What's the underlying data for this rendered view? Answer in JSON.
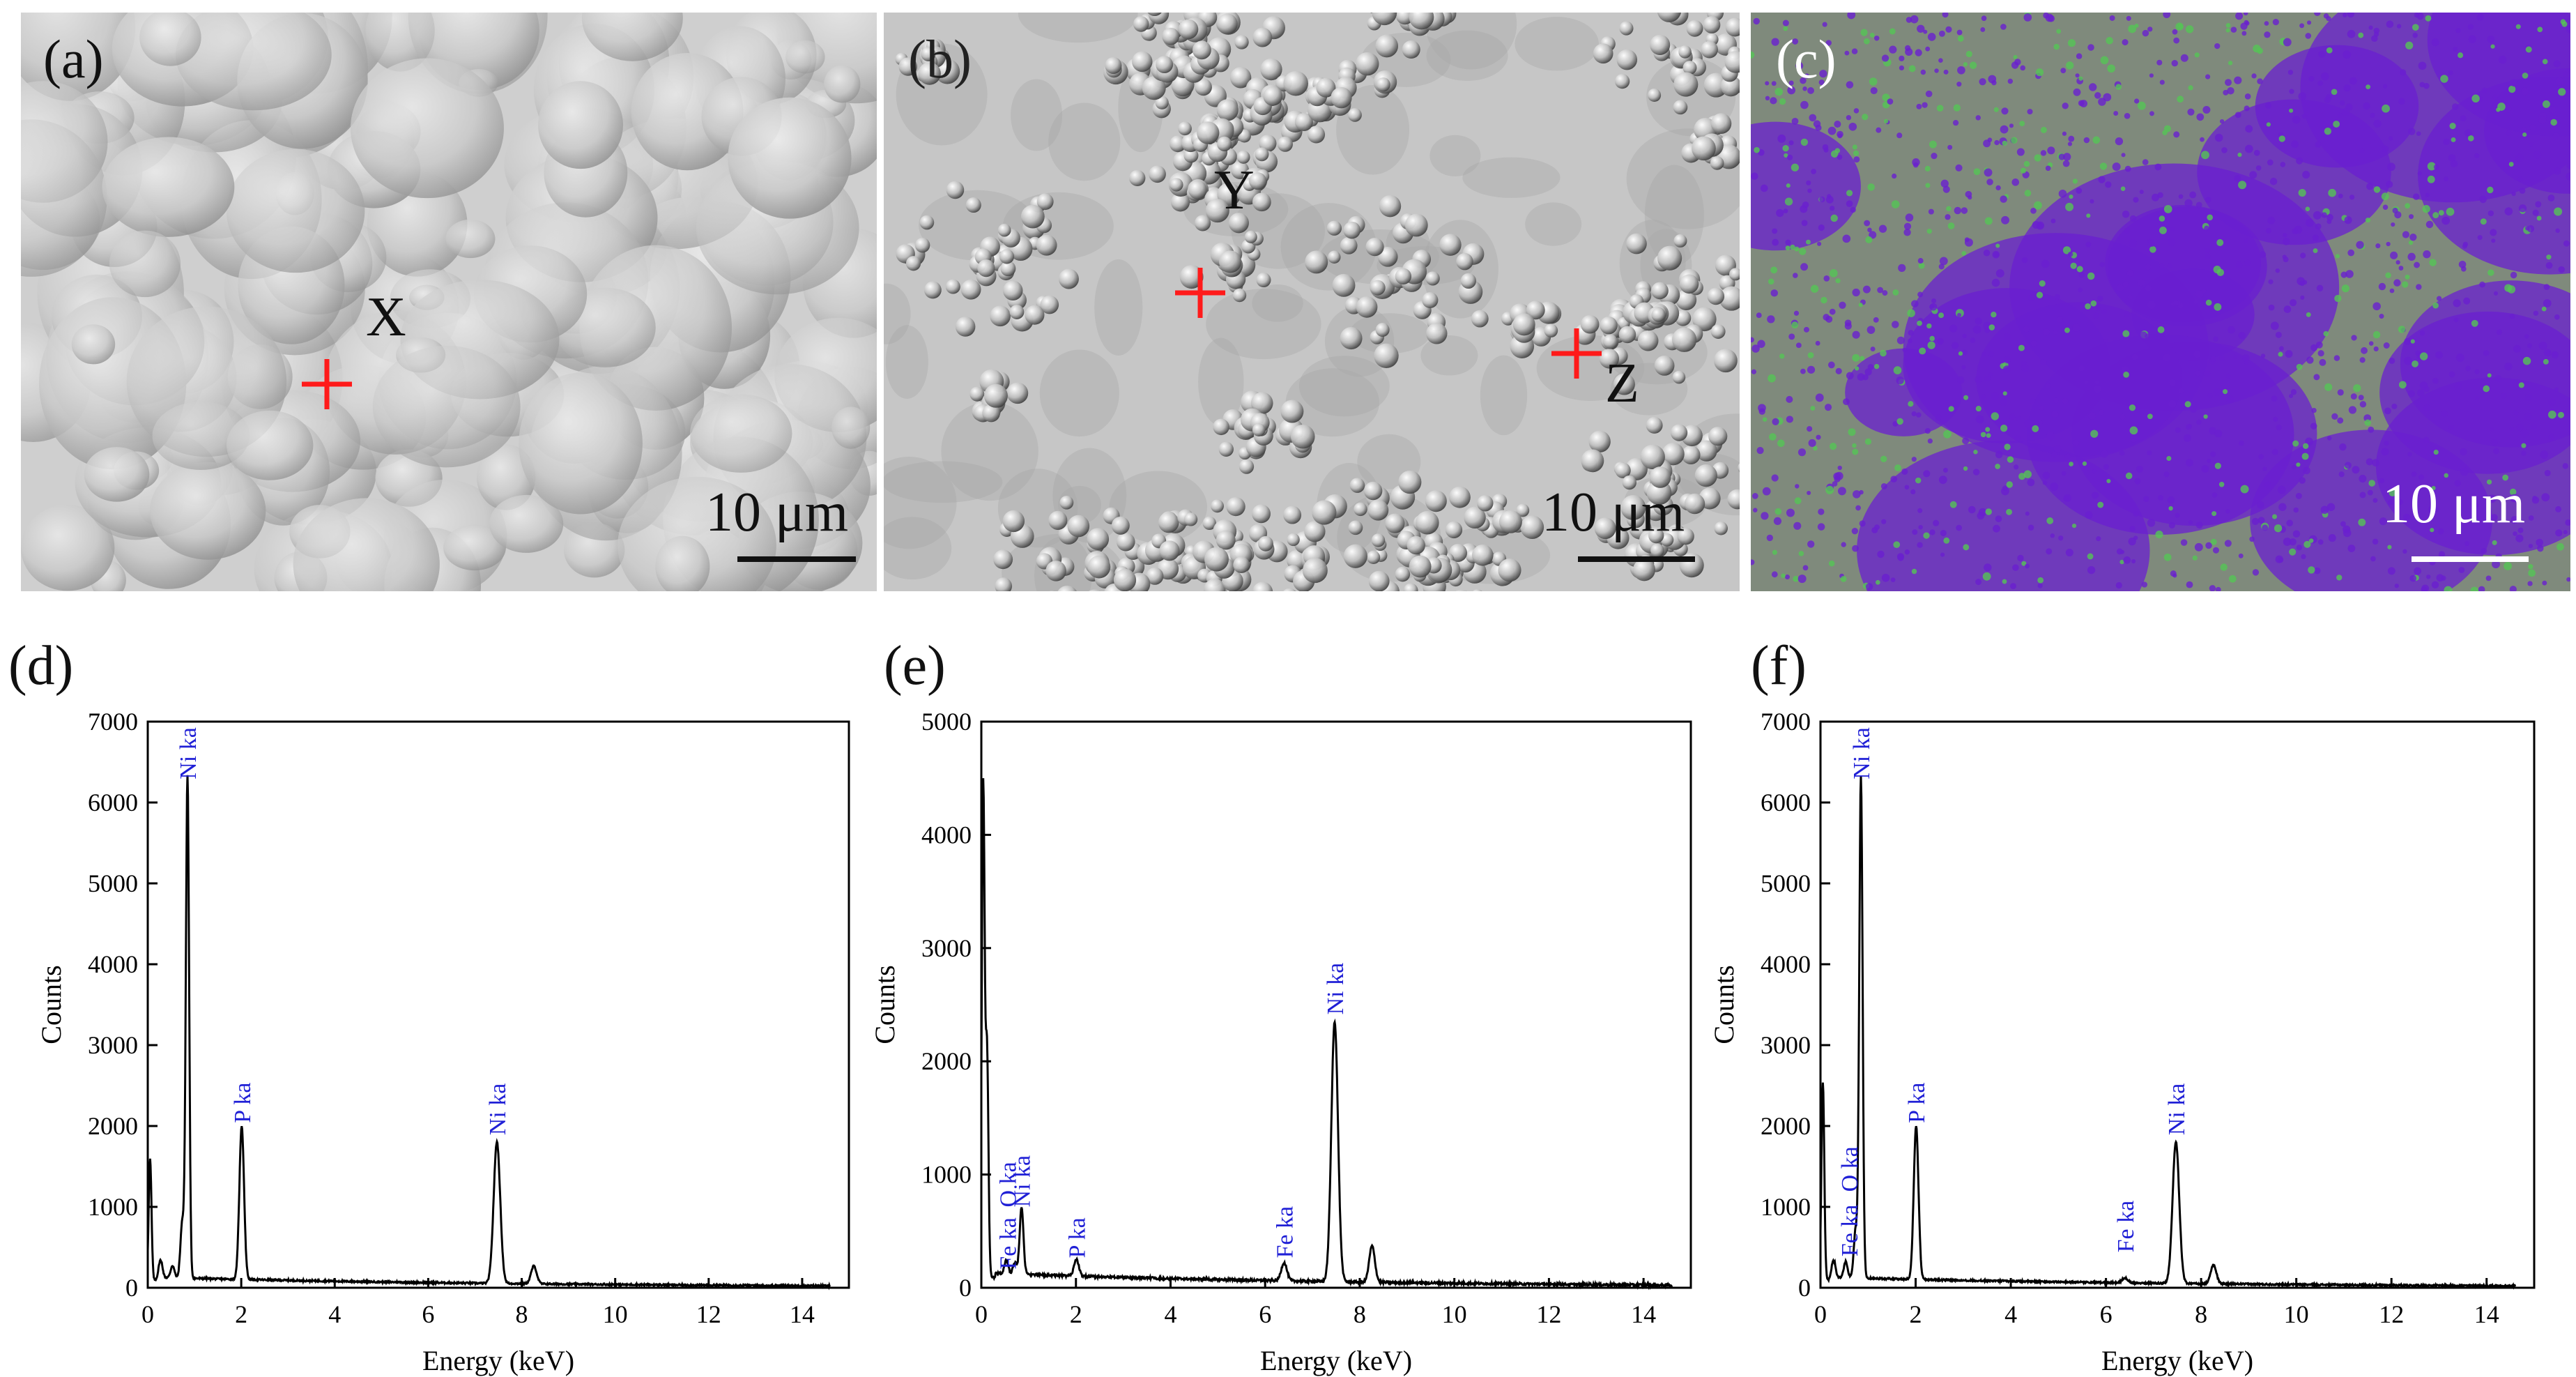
{
  "sem_panels": [
    {
      "letter": "(a)",
      "points": [
        "X"
      ],
      "scale": "10 μm",
      "style": "light"
    },
    {
      "letter": "(b)",
      "points": [
        "Y",
        "Z"
      ],
      "scale": "10 μm",
      "style": "grain"
    },
    {
      "letter": "(c)",
      "points": [],
      "scale": "10 μm",
      "style": "map"
    }
  ],
  "colors": {
    "marker": "#ff1a1a",
    "peak_label": "#1f1fd6",
    "map_purple": "#6a1fd0",
    "map_green": "#55c455",
    "spectrum_line": "#000000"
  },
  "chart_data": [
    {
      "panel": "(d)",
      "type": "line",
      "xlabel": "Energy (keV)",
      "ylabel": "Counts",
      "xlim": [
        0,
        15
      ],
      "ylim": [
        0,
        7000
      ],
      "xticks": [
        0,
        2,
        4,
        6,
        8,
        10,
        12,
        14
      ],
      "yticks": [
        0,
        1000,
        2000,
        3000,
        4000,
        5000,
        6000,
        7000
      ],
      "peaks": [
        {
          "energy": 0.05,
          "counts": 1500,
          "width": 0.03
        },
        {
          "energy": 0.27,
          "counts": 250,
          "width": 0.04
        },
        {
          "energy": 0.53,
          "counts": 150,
          "width": 0.04
        },
        {
          "energy": 0.74,
          "counts": 700,
          "width": 0.04
        },
        {
          "energy": 0.85,
          "counts": 6200,
          "width": 0.035
        },
        {
          "energy": 2.01,
          "counts": 1900,
          "width": 0.05
        },
        {
          "energy": 7.47,
          "counts": 1750,
          "width": 0.07
        },
        {
          "energy": 8.26,
          "counts": 220,
          "width": 0.06
        }
      ],
      "annotations": [
        {
          "text": "Ni ka",
          "energy": 0.85,
          "counts": 6200
        },
        {
          "text": "P ka",
          "energy": 2.01,
          "counts": 1950
        },
        {
          "text": "Ni ka",
          "energy": 7.47,
          "counts": 1800
        }
      ]
    },
    {
      "panel": "(e)",
      "type": "line",
      "xlabel": "Energy (keV)",
      "ylabel": "Counts",
      "xlim": [
        0,
        15
      ],
      "ylim": [
        0,
        5000
      ],
      "xticks": [
        0,
        2,
        4,
        6,
        8,
        10,
        12,
        14
      ],
      "yticks": [
        0,
        1000,
        2000,
        3000,
        4000,
        5000
      ],
      "peaks": [
        {
          "energy": 0.04,
          "counts": 4350,
          "width": 0.03
        },
        {
          "energy": 0.12,
          "counts": 2000,
          "width": 0.03
        },
        {
          "energy": 0.53,
          "counts": 120,
          "width": 0.04
        },
        {
          "energy": 0.71,
          "counts": 100,
          "width": 0.04
        },
        {
          "energy": 0.85,
          "counts": 600,
          "width": 0.04
        },
        {
          "energy": 2.01,
          "counts": 150,
          "width": 0.05
        },
        {
          "energy": 6.4,
          "counts": 160,
          "width": 0.06
        },
        {
          "energy": 7.47,
          "counts": 2300,
          "width": 0.07
        },
        {
          "energy": 8.26,
          "counts": 320,
          "width": 0.06
        }
      ],
      "annotations": [
        {
          "text": "Fe ka",
          "energy": 0.55,
          "counts": 100
        },
        {
          "text": "O ka",
          "energy": 0.55,
          "counts": 650
        },
        {
          "text": "Ni ka",
          "energy": 0.85,
          "counts": 650
        },
        {
          "text": "P ka",
          "energy": 2.01,
          "counts": 200
        },
        {
          "text": "Fe ka",
          "energy": 6.4,
          "counts": 200
        },
        {
          "text": "Ni ka",
          "energy": 7.47,
          "counts": 2350
        }
      ]
    },
    {
      "panel": "(f)",
      "type": "line",
      "xlabel": "Energy (keV)",
      "ylabel": "Counts",
      "xlim": [
        0,
        15
      ],
      "ylim": [
        0,
        7000
      ],
      "xticks": [
        0,
        2,
        4,
        6,
        8,
        10,
        12,
        14
      ],
      "yticks": [
        0,
        1000,
        2000,
        3000,
        4000,
        5000,
        6000,
        7000
      ],
      "peaks": [
        {
          "energy": 0.05,
          "counts": 2450,
          "width": 0.03
        },
        {
          "energy": 0.27,
          "counts": 250,
          "width": 0.04
        },
        {
          "energy": 0.53,
          "counts": 200,
          "width": 0.04
        },
        {
          "energy": 0.74,
          "counts": 600,
          "width": 0.04
        },
        {
          "energy": 0.85,
          "counts": 6200,
          "width": 0.035
        },
        {
          "energy": 2.01,
          "counts": 1900,
          "width": 0.05
        },
        {
          "energy": 6.4,
          "counts": 60,
          "width": 0.06
        },
        {
          "energy": 7.47,
          "counts": 1750,
          "width": 0.07
        },
        {
          "energy": 8.26,
          "counts": 230,
          "width": 0.06
        }
      ],
      "annotations": [
        {
          "text": "Fe ka",
          "energy": 0.6,
          "counts": 300
        },
        {
          "text": "O ka",
          "energy": 0.6,
          "counts": 1100
        },
        {
          "text": "Ni ka",
          "energy": 0.85,
          "counts": 6200
        },
        {
          "text": "P ka",
          "energy": 2.01,
          "counts": 1950
        },
        {
          "text": "Fe ka",
          "energy": 6.4,
          "counts": 350
        },
        {
          "text": "Ni ka",
          "energy": 7.47,
          "counts": 1800
        }
      ]
    }
  ]
}
